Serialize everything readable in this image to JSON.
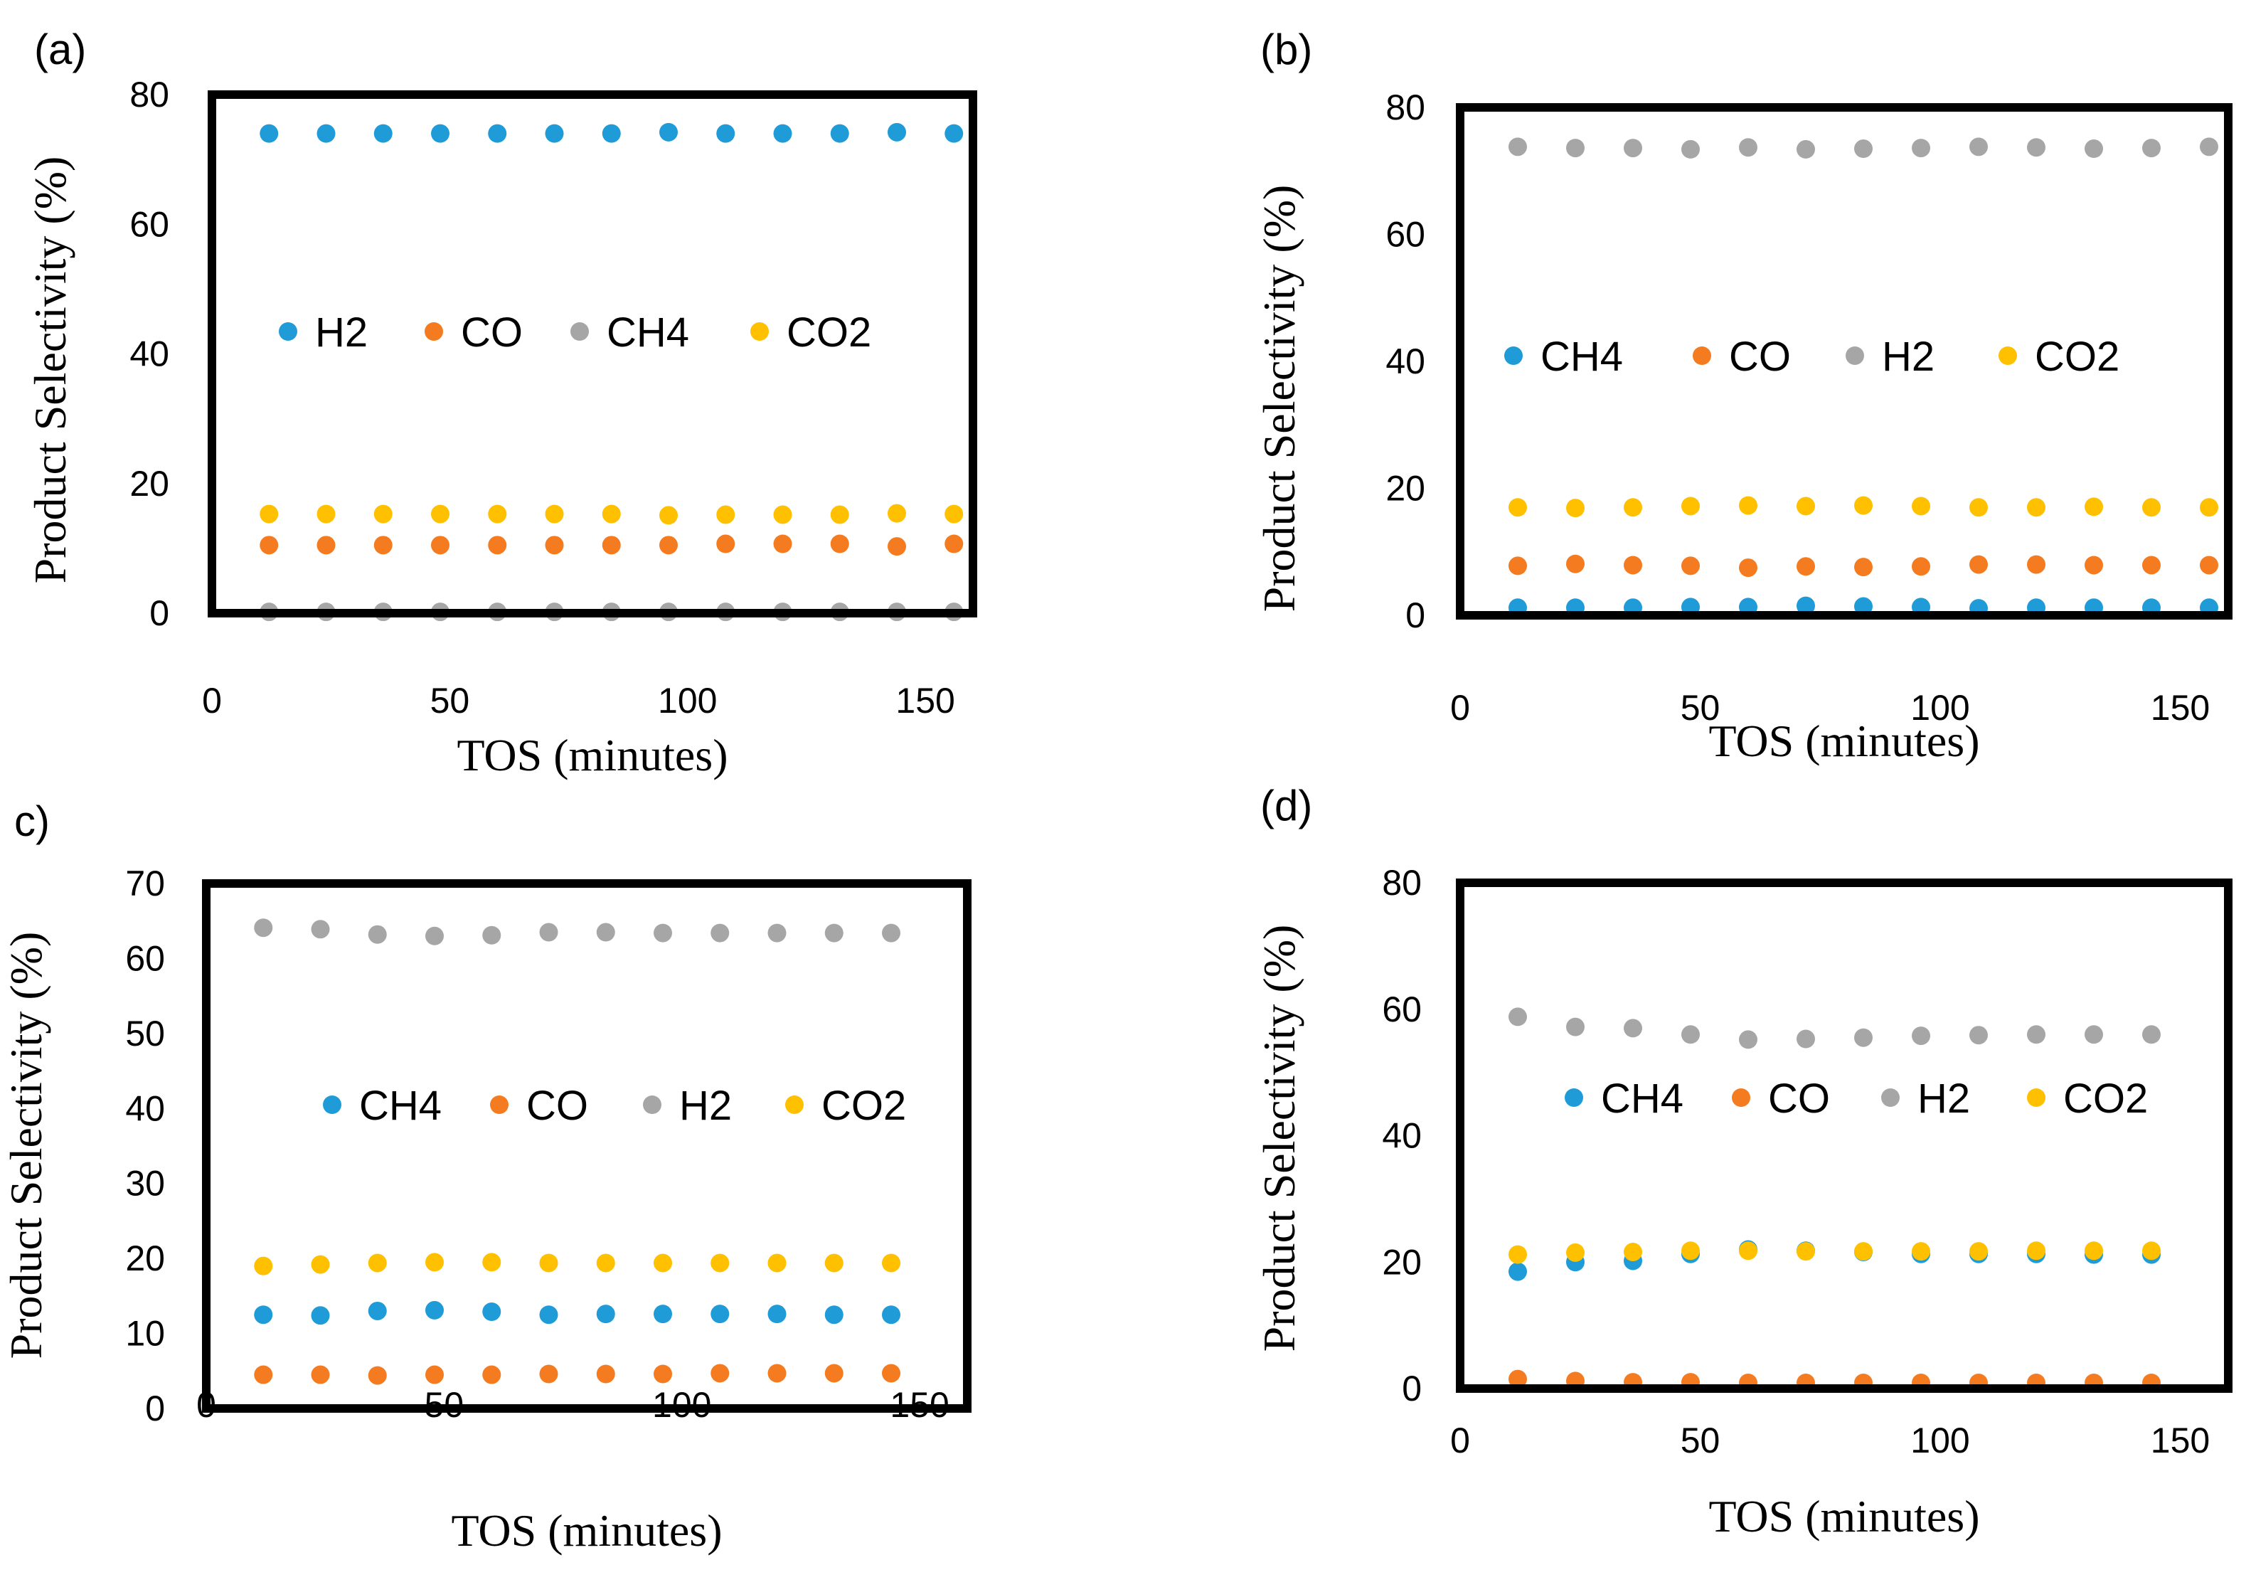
{
  "chart_data": [
    {
      "type": "scatter",
      "panel_label": "(a)",
      "xlabel": "TOS (minutes)",
      "ylabel": "Product Selectivity (%)",
      "xlim": [
        0,
        160
      ],
      "ylim": [
        0,
        80
      ],
      "xticks": [
        "0",
        "50",
        "100",
        "150"
      ],
      "yticks": [
        "0",
        "20",
        "40",
        "60",
        "80"
      ],
      "grid": false,
      "legend_position": "middle-inside",
      "x": [
        12,
        24,
        36,
        48,
        60,
        72,
        84,
        96,
        108,
        120,
        132,
        144,
        156
      ],
      "series": [
        {
          "name": "H2",
          "color": "#1f9bd8",
          "values": [
            74,
            74,
            74,
            74,
            74,
            74,
            74,
            74.2,
            74,
            74,
            74,
            74.2,
            74
          ]
        },
        {
          "name": "CO",
          "color": "#f47b20",
          "values": [
            10.5,
            10.5,
            10.5,
            10.5,
            10.5,
            10.5,
            10.5,
            10.5,
            10.7,
            10.7,
            10.7,
            10.3,
            10.7
          ]
        },
        {
          "name": "CH4",
          "color": "#a6a6a6",
          "values": [
            0.2,
            0.2,
            0.2,
            0.2,
            0.2,
            0.2,
            0.2,
            0.2,
            0.2,
            0.2,
            0.2,
            0.2,
            0.2
          ]
        },
        {
          "name": "CO2",
          "color": "#ffc000",
          "values": [
            15.3,
            15.3,
            15.3,
            15.3,
            15.3,
            15.3,
            15.3,
            15.1,
            15.2,
            15.2,
            15.2,
            15.4,
            15.3
          ]
        }
      ]
    },
    {
      "type": "scatter",
      "panel_label": "(b)",
      "xlabel": "TOS (minutes)",
      "ylabel": "Product Selectivity (%)",
      "xlim": [
        0,
        160
      ],
      "ylim": [
        0,
        80
      ],
      "xticks": [
        "0",
        "50",
        "100",
        "150"
      ],
      "yticks": [
        "0",
        "20",
        "40",
        "60",
        "80"
      ],
      "grid": false,
      "legend_position": "middle-inside",
      "x": [
        12,
        24,
        36,
        48,
        60,
        72,
        84,
        96,
        108,
        120,
        132,
        144,
        156
      ],
      "series": [
        {
          "name": "CH4",
          "color": "#1f9bd8",
          "values": [
            1.2,
            1.2,
            1.2,
            1.3,
            1.3,
            1.5,
            1.4,
            1.3,
            1.1,
            1.2,
            1.2,
            1.2,
            1.2
          ]
        },
        {
          "name": "CO",
          "color": "#f47b20",
          "values": [
            7.8,
            8.1,
            7.9,
            7.8,
            7.5,
            7.7,
            7.6,
            7.7,
            8.0,
            8.0,
            7.9,
            7.9,
            7.9
          ]
        },
        {
          "name": "H2",
          "color": "#a6a6a6",
          "values": [
            73.8,
            73.6,
            73.6,
            73.4,
            73.7,
            73.4,
            73.5,
            73.6,
            73.8,
            73.7,
            73.5,
            73.6,
            73.8
          ]
        },
        {
          "name": "CO2",
          "color": "#ffc000",
          "values": [
            17.0,
            16.9,
            17.0,
            17.2,
            17.3,
            17.2,
            17.3,
            17.2,
            17.0,
            17.0,
            17.1,
            17.0,
            17.0
          ]
        }
      ]
    },
    {
      "type": "scatter",
      "panel_label": "c)",
      "xlabel": "TOS (minutes)",
      "ylabel": "Product Selectivity (%)",
      "xlim": [
        0,
        160
      ],
      "ylim": [
        0,
        70
      ],
      "xticks": [
        "0",
        "50",
        "100",
        "150"
      ],
      "yticks": [
        "0",
        "10",
        "20",
        "30",
        "40",
        "50",
        "60",
        "70"
      ],
      "grid": false,
      "legend_position": "middle-inside",
      "x": [
        12,
        24,
        36,
        48,
        60,
        72,
        84,
        96,
        108,
        120,
        132,
        144
      ],
      "series": [
        {
          "name": "CH4",
          "color": "#1f9bd8",
          "values": [
            12.5,
            12.4,
            13.0,
            13.1,
            12.9,
            12.5,
            12.6,
            12.6,
            12.6,
            12.6,
            12.5,
            12.5
          ]
        },
        {
          "name": "CO",
          "color": "#f47b20",
          "values": [
            4.5,
            4.5,
            4.4,
            4.5,
            4.5,
            4.6,
            4.6,
            4.6,
            4.7,
            4.7,
            4.7,
            4.7
          ]
        },
        {
          "name": "H2",
          "color": "#a6a6a6",
          "values": [
            64.1,
            63.9,
            63.2,
            63.0,
            63.1,
            63.5,
            63.5,
            63.4,
            63.4,
            63.4,
            63.4,
            63.4
          ]
        },
        {
          "name": "CO2",
          "color": "#ffc000",
          "values": [
            19.0,
            19.2,
            19.4,
            19.5,
            19.5,
            19.4,
            19.4,
            19.4,
            19.4,
            19.4,
            19.4,
            19.4
          ]
        }
      ]
    },
    {
      "type": "scatter",
      "panel_label": "(d)",
      "xlabel": "TOS (minutes)",
      "ylabel": "Product Selectivity (%)",
      "xlim": [
        0,
        160
      ],
      "ylim": [
        0,
        80
      ],
      "xticks": [
        "0",
        "50",
        "100",
        "150"
      ],
      "yticks": [
        "0",
        "20",
        "40",
        "60",
        "80"
      ],
      "grid": false,
      "legend_position": "middle-inside",
      "x": [
        12,
        24,
        36,
        48,
        60,
        72,
        84,
        96,
        108,
        120,
        132,
        144
      ],
      "series": [
        {
          "name": "CH4",
          "color": "#1f9bd8",
          "values": [
            18.5,
            20.0,
            20.2,
            21.3,
            22.0,
            21.8,
            21.6,
            21.3,
            21.3,
            21.3,
            21.2,
            21.2
          ]
        },
        {
          "name": "CO",
          "color": "#f47b20",
          "values": [
            1.5,
            1.2,
            1.0,
            1.0,
            0.9,
            0.9,
            0.9,
            0.9,
            0.9,
            0.9,
            0.9,
            0.9
          ]
        },
        {
          "name": "H2",
          "color": "#a6a6a6",
          "values": [
            58.8,
            57.2,
            57.0,
            56.0,
            55.2,
            55.3,
            55.5,
            55.8,
            55.9,
            56.0,
            56.0,
            56.0
          ]
        },
        {
          "name": "CO2",
          "color": "#ffc000",
          "values": [
            21.2,
            21.5,
            21.6,
            21.8,
            21.8,
            21.7,
            21.7,
            21.7,
            21.7,
            21.8,
            21.8,
            21.8
          ]
        }
      ]
    }
  ]
}
